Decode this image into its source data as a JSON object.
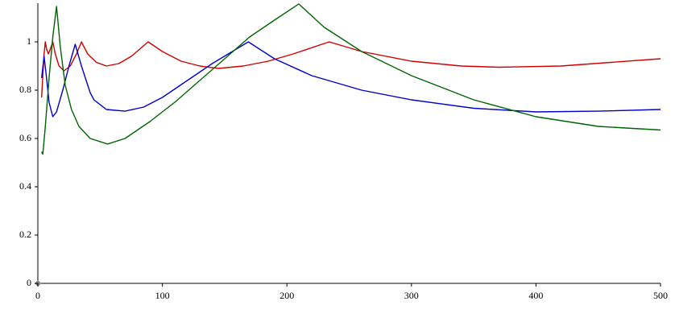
{
  "chart_data": {
    "type": "line",
    "xlim": [
      0,
      500
    ],
    "xticks": [
      0,
      100,
      200,
      300,
      400,
      500
    ],
    "ylim": [
      0,
      1.16
    ],
    "yticks": [
      0,
      0.2,
      0.4,
      0.6,
      0.8,
      1
    ],
    "series": [
      {
        "color": "#d00000",
        "x": [
          3,
          4,
          5,
          6,
          7,
          8.5,
          10,
          12,
          14,
          17,
          21,
          26,
          31,
          35,
          40,
          47,
          55,
          65,
          75,
          88.6,
          100,
          115,
          130,
          145,
          165,
          185,
          205,
          234,
          260,
          300,
          340,
          370,
          420,
          460,
          500
        ],
        "values": [
          0.77,
          0.86,
          0.95,
          1.0,
          0.97,
          0.95,
          0.97,
          1.0,
          0.95,
          0.9,
          0.88,
          0.9,
          0.95,
          1.0,
          0.95,
          0.915,
          0.9,
          0.91,
          0.94,
          1.0,
          0.96,
          0.92,
          0.9,
          0.89,
          0.9,
          0.92,
          0.95,
          1.0,
          0.96,
          0.92,
          0.9,
          0.895,
          0.9,
          0.915,
          0.93
        ]
      },
      {
        "color": "#0000c8",
        "x": [
          3,
          5,
          7,
          9,
          12,
          15,
          20,
          25,
          30,
          35,
          42,
          45,
          55,
          70,
          85,
          100,
          120,
          140,
          169,
          190,
          220,
          260,
          300,
          350,
          400,
          450,
          500
        ],
        "values": [
          0.85,
          0.94,
          0.85,
          0.75,
          0.69,
          0.71,
          0.8,
          0.9,
          0.99,
          0.9,
          0.79,
          0.76,
          0.72,
          0.713,
          0.73,
          0.77,
          0.84,
          0.91,
          1.0,
          0.93,
          0.86,
          0.8,
          0.76,
          0.725,
          0.71,
          0.713,
          0.72
        ]
      },
      {
        "color": "#006400",
        "x": [
          3,
          4,
          6,
          9,
          12,
          15,
          18,
          22,
          27,
          33,
          42,
          56,
          70,
          90,
          110,
          130,
          150,
          170,
          190,
          209.5,
          230,
          260,
          300,
          350,
          400,
          450,
          500
        ],
        "values": [
          0.545,
          0.535,
          0.65,
          0.85,
          1.02,
          1.147,
          0.98,
          0.82,
          0.72,
          0.65,
          0.6,
          0.577,
          0.6,
          0.67,
          0.75,
          0.84,
          0.93,
          1.02,
          1.09,
          1.157,
          1.06,
          0.96,
          0.86,
          0.76,
          0.69,
          0.65,
          0.635
        ]
      }
    ]
  }
}
